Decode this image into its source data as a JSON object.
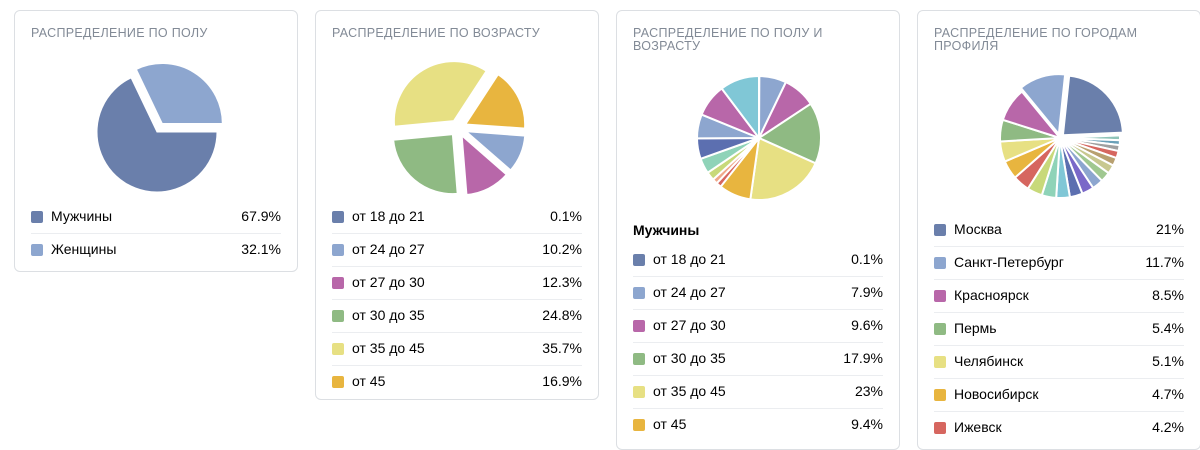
{
  "colors": {
    "blue": "#6a7fab",
    "lightblue": "#8da6cf",
    "purple": "#b867a9",
    "green": "#8fba83",
    "yellow": "#e7e083",
    "orange": "#e8b53f",
    "red": "#d6665f",
    "teal": "#80c7d6"
  },
  "chart_data": [
    {
      "type": "pie",
      "title": "РАСПРЕДЕЛЕНИЕ ПО ПОЛУ",
      "slices": [
        {
          "label": "Мужчины",
          "value": 67.9,
          "display": "67.9%",
          "color": "#6a7fab"
        },
        {
          "label": "Женщины",
          "value": 32.1,
          "display": "32.1%",
          "color": "#8da6cf"
        }
      ]
    },
    {
      "type": "pie",
      "title": "РАСПРЕДЕЛЕНИЕ ПО ВОЗРАСТУ",
      "slices": [
        {
          "label": "от 18 до 21",
          "value": 0.1,
          "display": "0.1%",
          "color": "#6a7fab"
        },
        {
          "label": "от 24 до 27",
          "value": 10.2,
          "display": "10.2%",
          "color": "#8da6cf"
        },
        {
          "label": "от 27 до 30",
          "value": 12.3,
          "display": "12.3%",
          "color": "#b867a9"
        },
        {
          "label": "от 30 до 35",
          "value": 24.8,
          "display": "24.8%",
          "color": "#8fba83"
        },
        {
          "label": "от 35 до 45",
          "value": 35.7,
          "display": "35.7%",
          "color": "#e7e083"
        },
        {
          "label": "от 45",
          "value": 16.9,
          "display": "16.9%",
          "color": "#e8b53f"
        }
      ]
    },
    {
      "type": "pie",
      "title": "РАСПРЕДЕЛЕНИЕ ПО ПОЛУ И\nВОЗРАСТУ",
      "subtitle": "Мужчины",
      "slices": [
        {
          "label": "от 18 до 21",
          "value": 0.1,
          "display": "0.1%",
          "color": "#6a7fab",
          "legend": true
        },
        {
          "label": "от 24 до 27",
          "value": 7.9,
          "display": "7.9%",
          "color": "#8da6cf",
          "legend": true
        },
        {
          "label": "от 27 до 30",
          "value": 9.6,
          "display": "9.6%",
          "color": "#b867a9",
          "legend": true
        },
        {
          "label": "от 30 до 35",
          "value": 17.9,
          "display": "17.9%",
          "color": "#8fba83",
          "legend": true
        },
        {
          "label": "от 35 до 45",
          "value": 23,
          "display": "23%",
          "color": "#e7e083",
          "legend": true
        },
        {
          "label": "от 45",
          "value": 9.4,
          "display": "9.4%",
          "color": "#e8b53f",
          "legend": true
        },
        {
          "value": 1.5,
          "color": "#d6665f"
        },
        {
          "value": 1.5,
          "color": "#f0a88a"
        },
        {
          "value": 2.5,
          "color": "#c8d97a"
        },
        {
          "value": 4.5,
          "color": "#8fd3b8"
        },
        {
          "value": 6.0,
          "color": "#5c6fb0"
        },
        {
          "value": 7.0,
          "color": "#8da6cf"
        },
        {
          "value": 9.6,
          "color": "#b867a9"
        },
        {
          "value": 11.5,
          "color": "#80c7d6"
        }
      ]
    },
    {
      "type": "pie",
      "title": "РАСПРЕДЕЛЕНИЕ ПО ГОРОДАМ\nПРОФИЛЯ",
      "slices": [
        {
          "label": "Москва",
          "value": 21,
          "display": "21%",
          "color": "#6a7fab",
          "legend": true
        },
        {
          "value": 1.2,
          "color": "#8fc4b8"
        },
        {
          "value": 1.2,
          "color": "#6aa0b8"
        },
        {
          "value": 1.5,
          "color": "#a0a0a0"
        },
        {
          "value": 1.8,
          "color": "#d6665f"
        },
        {
          "value": 2.0,
          "color": "#b8a070"
        },
        {
          "value": 2.2,
          "color": "#c8c890"
        },
        {
          "value": 2.5,
          "color": "#a0c890"
        },
        {
          "value": 2.8,
          "color": "#8da6cf"
        },
        {
          "value": 3.0,
          "color": "#7a68c8"
        },
        {
          "value": 3.2,
          "color": "#5c6fb0"
        },
        {
          "value": 3.4,
          "color": "#80c7d6"
        },
        {
          "value": 3.6,
          "color": "#8fd3b8"
        },
        {
          "value": 3.8,
          "color": "#c8d97a"
        },
        {
          "label": "Ижевск",
          "value": 4.2,
          "display": "4.2%",
          "color": "#d6665f",
          "legend": true
        },
        {
          "label": "Новосибирск",
          "value": 4.7,
          "display": "4.7%",
          "color": "#e8b53f",
          "legend": true
        },
        {
          "label": "Челябинск",
          "value": 5.1,
          "display": "5.1%",
          "color": "#e7e083",
          "legend": true
        },
        {
          "label": "Пермь",
          "value": 5.4,
          "display": "5.4%",
          "color": "#8fba83",
          "legend": true
        },
        {
          "label": "Красноярск",
          "value": 8.5,
          "display": "8.5%",
          "color": "#b867a9",
          "legend": true
        },
        {
          "label": "Санкт-Петербург",
          "value": 11.7,
          "display": "11.7%",
          "color": "#8da6cf",
          "legend": true
        }
      ],
      "legend_order": [
        "Москва",
        "Санкт-Петербург",
        "Красноярск",
        "Пермь",
        "Челябинск",
        "Новосибирск",
        "Ижевск"
      ]
    }
  ]
}
